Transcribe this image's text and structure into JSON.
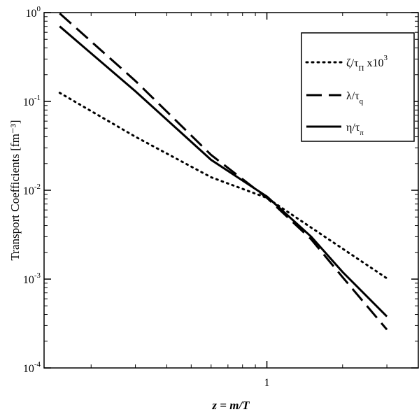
{
  "chart_data": {
    "type": "line",
    "xscale": "log",
    "yscale": "log",
    "xlim": [
      0.13,
      4.0
    ],
    "ylim": [
      0.0001,
      1.0
    ],
    "xlabel": "z = m/T",
    "ylabel": "Transport Coefficients   [fm⁻³]",
    "x_ticks": [
      {
        "value": 1,
        "label": "1"
      }
    ],
    "y_ticks": [
      {
        "value": 1,
        "base": "10",
        "exp": "0"
      },
      {
        "value": 0.1,
        "base": "10",
        "exp": "-1"
      },
      {
        "value": 0.01,
        "base": "10",
        "exp": "-2"
      },
      {
        "value": 0.001,
        "base": "10",
        "exp": "-3"
      },
      {
        "value": 0.0001,
        "base": "10",
        "exp": "-4"
      }
    ],
    "legend_position": "top-right",
    "series": [
      {
        "name": "ζ/τΠ x10³",
        "legend": {
          "main": "ζ/τ",
          "sub": "Π",
          "tail": " x10",
          "sup": "3"
        },
        "style": "dotted",
        "points": [
          [
            0.15,
            0.125
          ],
          [
            0.3,
            0.04
          ],
          [
            0.6,
            0.014
          ],
          [
            1.0,
            0.0082
          ],
          [
            1.5,
            0.0038
          ],
          [
            2.0,
            0.0022
          ],
          [
            3.0,
            0.00102
          ]
        ]
      },
      {
        "name": "λ/τq",
        "legend": {
          "main": "λ/τ",
          "sub": "q",
          "tail": "",
          "sup": ""
        },
        "style": "dashed",
        "points": [
          [
            0.15,
            0.98
          ],
          [
            0.3,
            0.17
          ],
          [
            0.6,
            0.025
          ],
          [
            1.0,
            0.0082
          ],
          [
            1.5,
            0.0028
          ],
          [
            2.0,
            0.00105
          ],
          [
            3.0,
            0.00027
          ]
        ]
      },
      {
        "name": "η/τπ",
        "legend": {
          "main": "η/τ",
          "sub": "π",
          "tail": "",
          "sup": ""
        },
        "style": "solid",
        "points": [
          [
            0.15,
            0.7
          ],
          [
            0.3,
            0.13
          ],
          [
            0.6,
            0.022
          ],
          [
            1.0,
            0.0085
          ],
          [
            1.5,
            0.003
          ],
          [
            2.0,
            0.0012
          ],
          [
            3.0,
            0.00038
          ]
        ]
      }
    ]
  }
}
